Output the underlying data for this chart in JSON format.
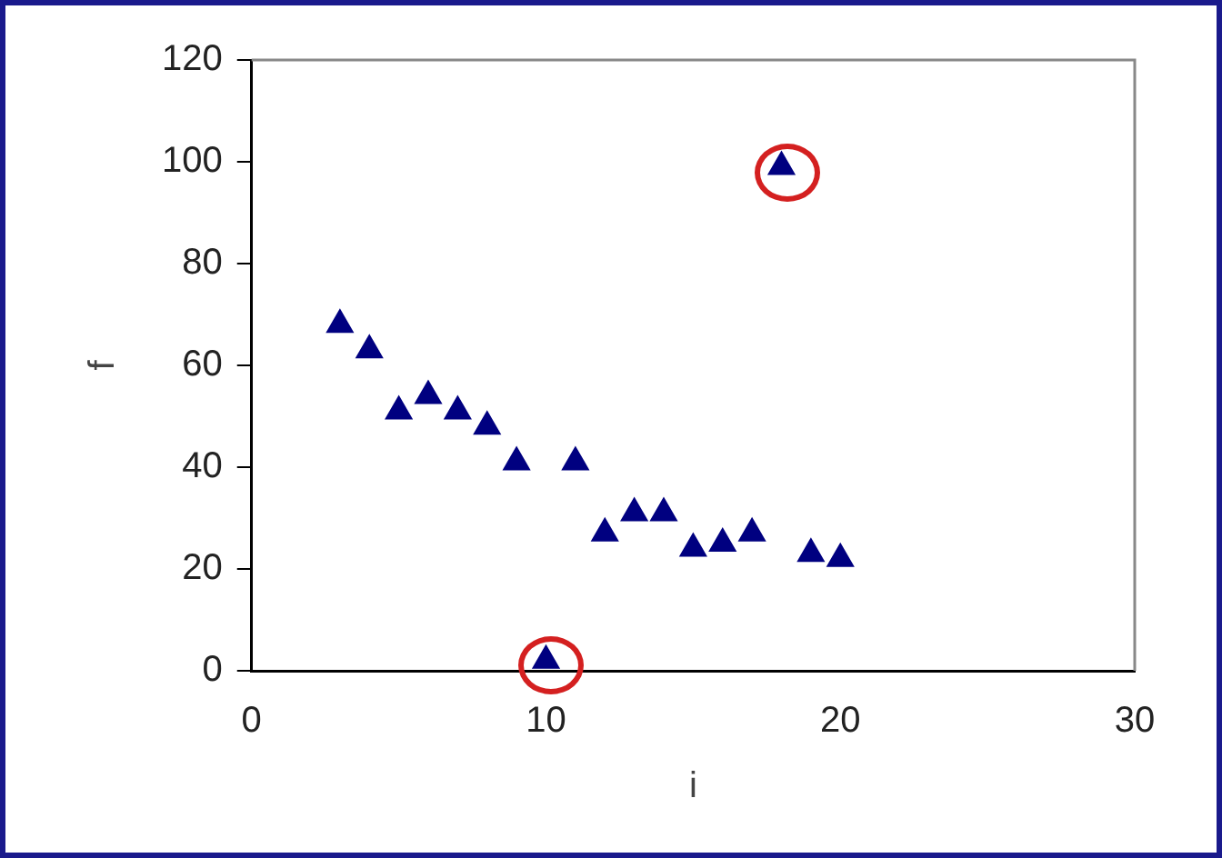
{
  "chart_data": {
    "type": "scatter",
    "xlabel": "i",
    "ylabel": "f",
    "x": [
      3,
      4,
      5,
      6,
      7,
      8,
      9,
      10,
      11,
      12,
      13,
      14,
      15,
      16,
      17,
      18,
      19,
      20
    ],
    "values": [
      68,
      63,
      51,
      54,
      51,
      48,
      41,
      2,
      41,
      27,
      31,
      31,
      24,
      25,
      27,
      99,
      23,
      22
    ],
    "color": "#000080",
    "marker": "triangle",
    "grid": false,
    "legend": false,
    "xlim": [
      0,
      30
    ],
    "xticks": [
      0,
      10,
      20,
      30
    ],
    "ylim": [
      0,
      120
    ],
    "yticks": [
      0,
      20,
      40,
      60,
      80,
      100,
      120
    ]
  }
}
